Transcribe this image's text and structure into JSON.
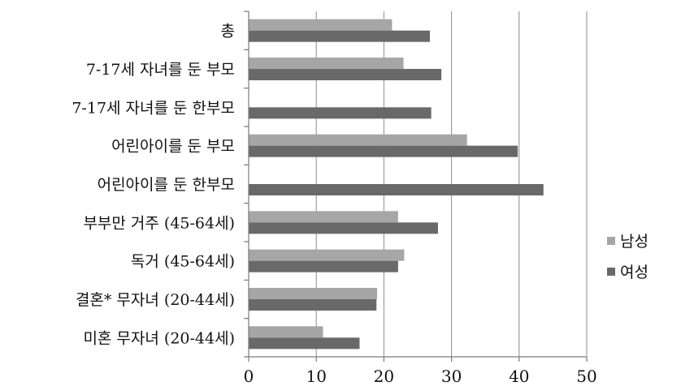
{
  "chart_data": {
    "type": "bar",
    "orientation": "horizontal",
    "categories": [
      "총",
      "7-17세 자녀를 둔 부모",
      "7-17세 자녀를 둔 한부모",
      "어린아이를 둔 부모",
      "어린아이를 둔 한부모",
      "부부만 거주 (45-64세)",
      "독거 (45-64세)",
      "결혼* 무자녀 (20-44세)",
      "미혼 무자녀 (20-44세)"
    ],
    "series": [
      {
        "name": "남성",
        "color": "#a6a6a6",
        "values": [
          21.2,
          22.9,
          null,
          32.3,
          null,
          22.1,
          23.0,
          19.0,
          11.0
        ]
      },
      {
        "name": "여성",
        "color": "#696969",
        "values": [
          26.8,
          28.5,
          27.0,
          39.8,
          43.6,
          28.0,
          22.1,
          18.9,
          16.4
        ]
      }
    ],
    "x_ticks": [
      0,
      10,
      20,
      30,
      40,
      50
    ],
    "xlim": [
      0,
      50
    ],
    "grid": true,
    "legend_position": "right",
    "title": "",
    "xlabel": "",
    "ylabel": ""
  }
}
